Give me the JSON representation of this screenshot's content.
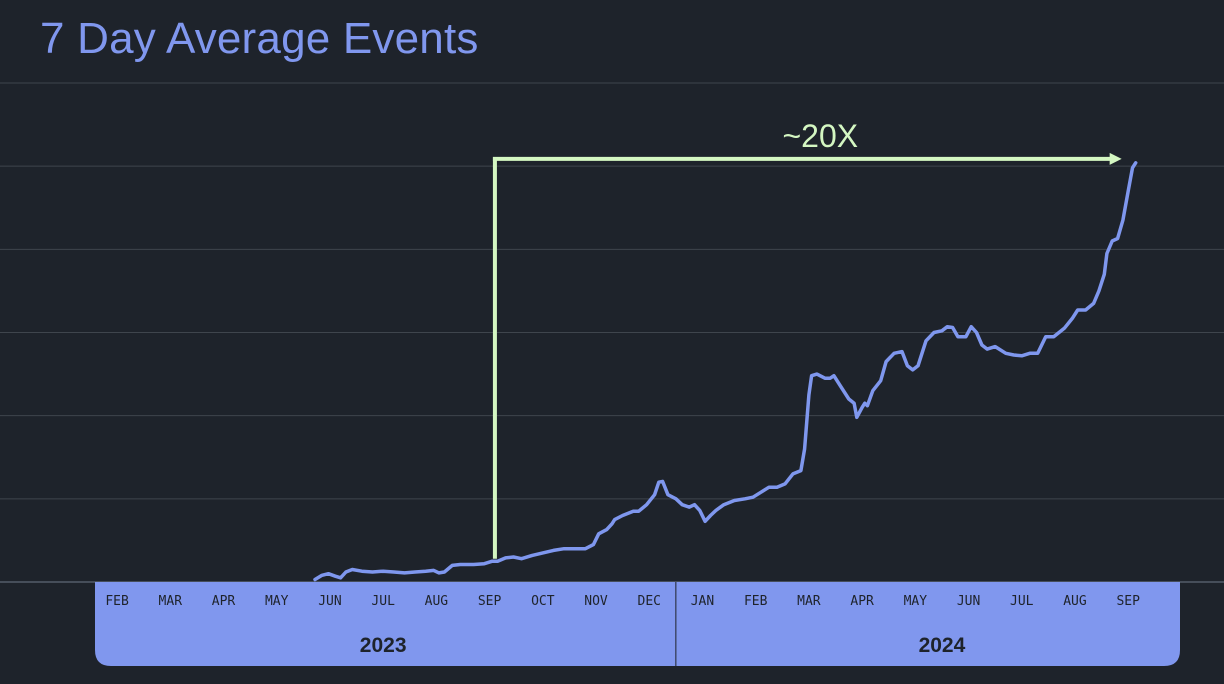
{
  "title": "7 Day Average Events",
  "colors": {
    "background": "#1e232b",
    "line": "#7f97ee",
    "band": "#8097ee",
    "annotation": "#d4f7c2",
    "grid": "#3f454d"
  },
  "chart_data": {
    "type": "line",
    "title": "7 Day Average Events",
    "xlabel": "",
    "ylabel": "",
    "grid": true,
    "legend": "none",
    "x_ticks": [
      {
        "label": "FEB",
        "month": 1
      },
      {
        "label": "MAR",
        "month": 2
      },
      {
        "label": "APR",
        "month": 3
      },
      {
        "label": "MAY",
        "month": 4
      },
      {
        "label": "JUN",
        "month": 5
      },
      {
        "label": "JUL",
        "month": 6
      },
      {
        "label": "AUG",
        "month": 7
      },
      {
        "label": "SEP",
        "month": 8
      },
      {
        "label": "OCT",
        "month": 9
      },
      {
        "label": "NOV",
        "month": 10
      },
      {
        "label": "DEC",
        "month": 11
      },
      {
        "label": "JAN",
        "month": 12
      },
      {
        "label": "FEB",
        "month": 13
      },
      {
        "label": "MAR",
        "month": 14
      },
      {
        "label": "APR",
        "month": 15
      },
      {
        "label": "MAY",
        "month": 16
      },
      {
        "label": "JUN",
        "month": 17
      },
      {
        "label": "JUL",
        "month": 18
      },
      {
        "label": "AUG",
        "month": 19
      },
      {
        "label": "SEP",
        "month": 20
      }
    ],
    "years": [
      {
        "label": "2023",
        "from": 0.5,
        "to": 11.5
      },
      {
        "label": "2024",
        "from": 11.5,
        "to": 21.5
      }
    ],
    "x_range": [
      -1.2,
      21.8
    ],
    "y_range": [
      0,
      6
    ],
    "gridlines": [
      1,
      2,
      3,
      4,
      5,
      6
    ],
    "series": [
      {
        "points": [
          [
            4.72,
            0.03
          ],
          [
            4.85,
            0.08
          ],
          [
            4.97,
            0.1
          ],
          [
            5.1,
            0.07
          ],
          [
            5.2,
            0.05
          ],
          [
            5.3,
            0.12
          ],
          [
            5.42,
            0.15
          ],
          [
            5.6,
            0.13
          ],
          [
            5.8,
            0.12
          ],
          [
            6.0,
            0.13
          ],
          [
            6.2,
            0.12
          ],
          [
            6.4,
            0.11
          ],
          [
            6.6,
            0.12
          ],
          [
            6.8,
            0.13
          ],
          [
            6.95,
            0.14
          ],
          [
            7.05,
            0.11
          ],
          [
            7.15,
            0.12
          ],
          [
            7.3,
            0.2
          ],
          [
            7.45,
            0.21
          ],
          [
            7.7,
            0.21
          ],
          [
            7.9,
            0.22
          ],
          [
            8.05,
            0.25
          ],
          [
            8.15,
            0.25
          ],
          [
            8.3,
            0.29
          ],
          [
            8.45,
            0.3
          ],
          [
            8.6,
            0.28
          ],
          [
            8.8,
            0.32
          ],
          [
            9.0,
            0.35
          ],
          [
            9.2,
            0.38
          ],
          [
            9.4,
            0.4
          ],
          [
            9.6,
            0.4
          ],
          [
            9.8,
            0.4
          ],
          [
            9.95,
            0.45
          ],
          [
            10.05,
            0.58
          ],
          [
            10.2,
            0.63
          ],
          [
            10.3,
            0.7
          ],
          [
            10.35,
            0.75
          ],
          [
            10.5,
            0.8
          ],
          [
            10.7,
            0.85
          ],
          [
            10.8,
            0.85
          ],
          [
            10.95,
            0.93
          ],
          [
            11.1,
            1.05
          ],
          [
            11.18,
            1.2
          ],
          [
            11.25,
            1.21
          ],
          [
            11.35,
            1.05
          ],
          [
            11.5,
            1.0
          ],
          [
            11.62,
            0.93
          ],
          [
            11.75,
            0.9
          ],
          [
            11.85,
            0.93
          ],
          [
            11.95,
            0.86
          ],
          [
            12.05,
            0.73
          ],
          [
            12.15,
            0.8
          ],
          [
            12.25,
            0.86
          ],
          [
            12.4,
            0.93
          ],
          [
            12.6,
            0.98
          ],
          [
            12.8,
            1.0
          ],
          [
            12.95,
            1.02
          ],
          [
            13.1,
            1.08
          ],
          [
            13.25,
            1.14
          ],
          [
            13.4,
            1.14
          ],
          [
            13.55,
            1.18
          ],
          [
            13.7,
            1.3
          ],
          [
            13.85,
            1.34
          ],
          [
            13.92,
            1.6
          ],
          [
            14.0,
            2.25
          ],
          [
            14.05,
            2.48
          ],
          [
            14.15,
            2.5
          ],
          [
            14.3,
            2.45
          ],
          [
            14.4,
            2.45
          ],
          [
            14.47,
            2.48
          ],
          [
            14.6,
            2.35
          ],
          [
            14.75,
            2.2
          ],
          [
            14.85,
            2.15
          ],
          [
            14.9,
            1.98
          ],
          [
            15.0,
            2.1
          ],
          [
            15.05,
            2.15
          ],
          [
            15.1,
            2.12
          ],
          [
            15.2,
            2.3
          ],
          [
            15.35,
            2.42
          ],
          [
            15.45,
            2.65
          ],
          [
            15.6,
            2.75
          ],
          [
            15.75,
            2.77
          ],
          [
            15.85,
            2.6
          ],
          [
            15.95,
            2.55
          ],
          [
            16.05,
            2.6
          ],
          [
            16.2,
            2.9
          ],
          [
            16.35,
            3.0
          ],
          [
            16.5,
            3.02
          ],
          [
            16.6,
            3.07
          ],
          [
            16.7,
            3.06
          ],
          [
            16.8,
            2.95
          ],
          [
            16.95,
            2.95
          ],
          [
            17.05,
            3.07
          ],
          [
            17.15,
            3.0
          ],
          [
            17.25,
            2.85
          ],
          [
            17.35,
            2.8
          ],
          [
            17.5,
            2.83
          ],
          [
            17.7,
            2.75
          ],
          [
            17.85,
            2.73
          ],
          [
            18.0,
            2.72
          ],
          [
            18.15,
            2.75
          ],
          [
            18.3,
            2.75
          ],
          [
            18.45,
            2.95
          ],
          [
            18.6,
            2.95
          ],
          [
            18.8,
            3.05
          ],
          [
            18.95,
            3.17
          ],
          [
            19.05,
            3.27
          ],
          [
            19.2,
            3.27
          ],
          [
            19.35,
            3.35
          ],
          [
            19.45,
            3.5
          ],
          [
            19.55,
            3.7
          ],
          [
            19.6,
            3.95
          ],
          [
            19.7,
            4.1
          ],
          [
            19.8,
            4.13
          ],
          [
            19.9,
            4.35
          ],
          [
            20.0,
            4.7
          ],
          [
            20.08,
            4.98
          ],
          [
            20.14,
            5.04
          ]
        ]
      }
    ],
    "annotation": {
      "label": "~20X",
      "start": [
        8.1,
        0.28
      ],
      "end": [
        20.14,
        5.04
      ]
    }
  }
}
